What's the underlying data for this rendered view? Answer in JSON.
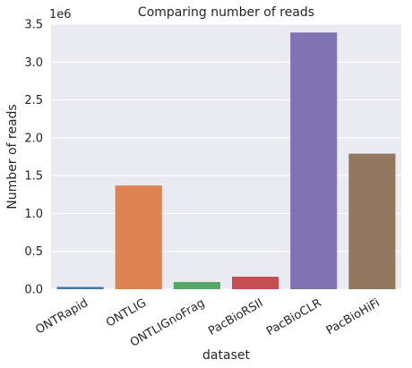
{
  "chart_data": {
    "type": "bar",
    "title": "Comparing number of reads",
    "xlabel": "dataset",
    "ylabel": "Number of reads",
    "y_scale_label": "1e6",
    "categories": [
      "ONTRapid",
      "ONTLIG",
      "ONTLIGnoFrag",
      "PacBioRSII",
      "PacBioCLR",
      "PacBioHiFi"
    ],
    "values": [
      30000,
      1370000,
      95000,
      165000,
      3390000,
      1790000
    ],
    "colors": [
      "#4c72b0",
      "#dd8452",
      "#55a868",
      "#c44e52",
      "#8172b3",
      "#937860"
    ],
    "ylim": [
      0,
      3500000
    ],
    "yticks": [
      0,
      500000,
      1000000,
      1500000,
      2000000,
      2500000,
      3000000,
      3500000
    ],
    "ytick_labels": [
      "0.0",
      "0.5",
      "1.0",
      "1.5",
      "2.0",
      "2.5",
      "3.0",
      "3.5"
    ],
    "grid": true,
    "plot_background": "#eaeaf2"
  }
}
